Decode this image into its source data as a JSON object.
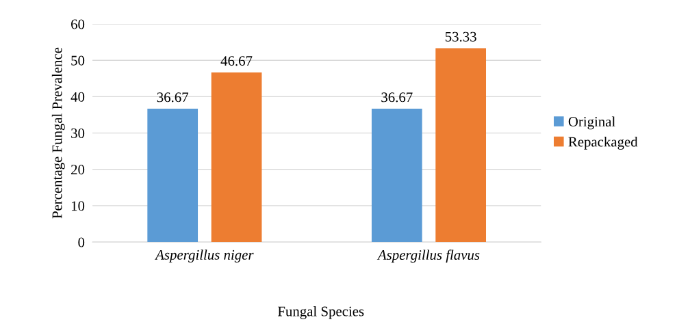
{
  "chart_data": {
    "type": "bar",
    "xlabel": "Fungal Species",
    "ylabel": "Percentage Fungal Prevalence",
    "categories": [
      "Aspergillus niger",
      "Aspergillus flavus"
    ],
    "series": [
      {
        "name": "Original",
        "color": "#5b9bd5",
        "values": [
          36.67,
          36.67
        ]
      },
      {
        "name": "Repackaged",
        "color": "#ed7d31",
        "values": [
          46.67,
          53.33
        ]
      }
    ],
    "ylim": [
      0,
      60
    ],
    "yticks": [
      0,
      10,
      20,
      30,
      40,
      50,
      60
    ],
    "grid": "y",
    "legend": "right",
    "data_labels": true
  }
}
